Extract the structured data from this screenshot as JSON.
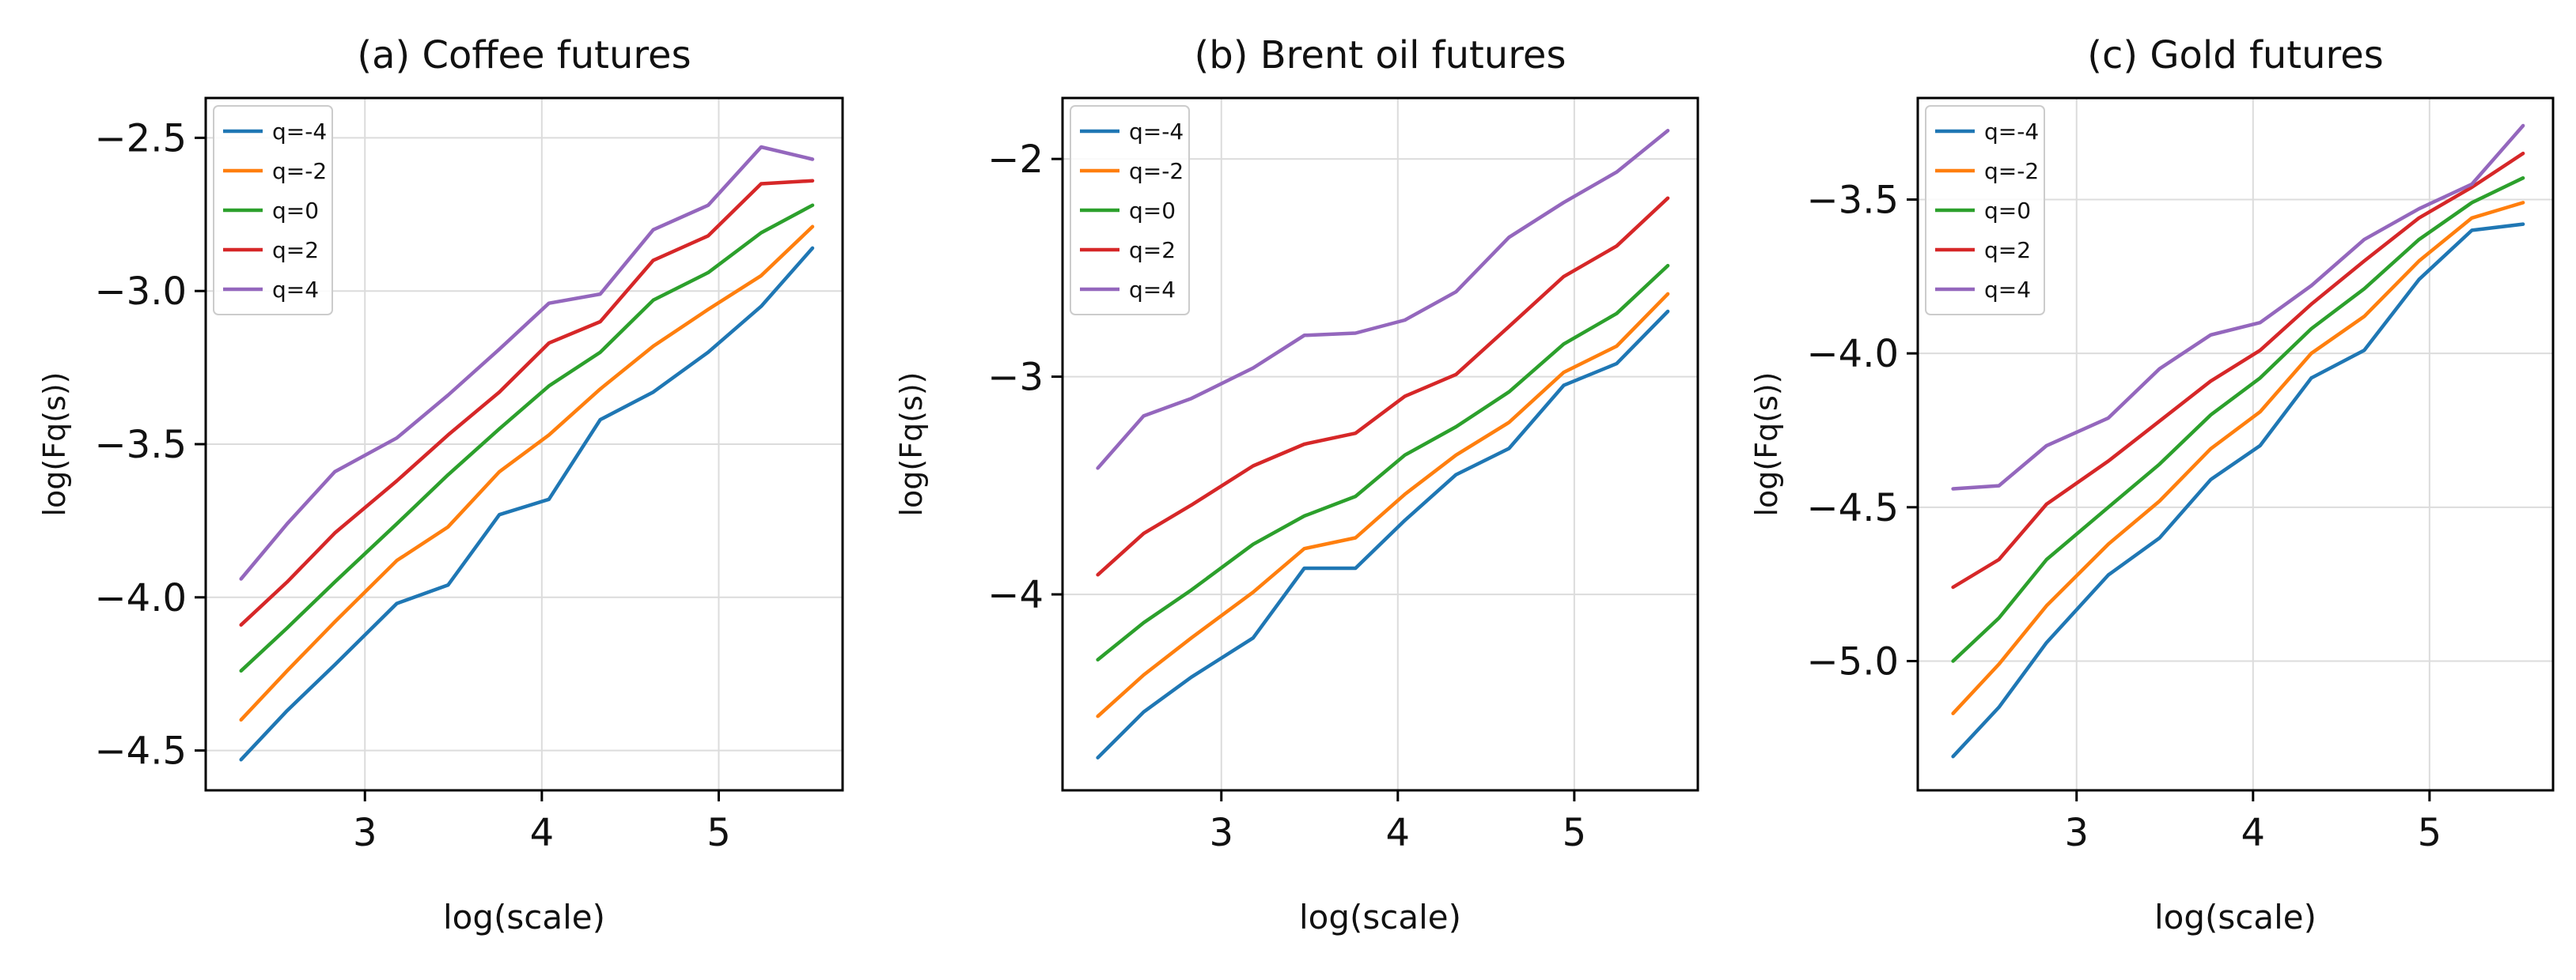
{
  "chart_data": [
    {
      "type": "line",
      "title": "(a) Coffee futures",
      "xlabel": "log(scale)",
      "ylabel": "log(Fq(s))",
      "xlim": [
        2.1,
        5.7
      ],
      "ylim": [
        -4.63,
        -2.37
      ],
      "xticks": [
        3,
        4,
        5
      ],
      "xtick_labels": [
        "3",
        "4",
        "5"
      ],
      "yticks": [
        -4.5,
        -4.0,
        -3.5,
        -3.0,
        -2.5
      ],
      "ytick_labels": [
        "−4.5",
        "−4.0",
        "−3.5",
        "−3.0",
        "−2.5"
      ],
      "grid": true,
      "legend_position": "top-left",
      "x": [
        2.3,
        2.56,
        2.83,
        3.18,
        3.47,
        3.76,
        4.04,
        4.33,
        4.63,
        4.94,
        5.24,
        5.53
      ],
      "series": [
        {
          "name": "q=-4",
          "color": "#1f77b4",
          "values": [
            -4.53,
            -4.37,
            -4.22,
            -4.02,
            -3.96,
            -3.73,
            -3.68,
            -3.42,
            -3.33,
            -3.2,
            -3.05,
            -2.86
          ]
        },
        {
          "name": "q=-2",
          "color": "#ff7f0e",
          "values": [
            -4.4,
            -4.24,
            -4.08,
            -3.88,
            -3.77,
            -3.59,
            -3.47,
            -3.32,
            -3.18,
            -3.06,
            -2.95,
            -2.79
          ]
        },
        {
          "name": "q=0",
          "color": "#2ca02c",
          "values": [
            -4.24,
            -4.1,
            -3.95,
            -3.76,
            -3.6,
            -3.45,
            -3.31,
            -3.2,
            -3.03,
            -2.94,
            -2.81,
            -2.72
          ]
        },
        {
          "name": "q=2",
          "color": "#d62728",
          "values": [
            -4.09,
            -3.95,
            -3.79,
            -3.62,
            -3.47,
            -3.33,
            -3.17,
            -3.1,
            -2.9,
            -2.82,
            -2.65,
            -2.64
          ]
        },
        {
          "name": "q=4",
          "color": "#9467bd",
          "values": [
            -3.94,
            -3.76,
            -3.59,
            -3.48,
            -3.34,
            -3.19,
            -3.04,
            -3.01,
            -2.8,
            -2.72,
            -2.53,
            -2.57
          ]
        }
      ]
    },
    {
      "type": "line",
      "title": "(b) Brent oil futures",
      "xlabel": "log(scale)",
      "ylabel": "log(Fq(s))",
      "xlim": [
        2.1,
        5.7
      ],
      "ylim": [
        -4.9,
        -1.72
      ],
      "xticks": [
        3,
        4,
        5
      ],
      "xtick_labels": [
        "3",
        "4",
        "5"
      ],
      "yticks": [
        -4,
        -3,
        -2
      ],
      "ytick_labels": [
        "−4",
        "−3",
        "−2"
      ],
      "grid": true,
      "legend_position": "top-left",
      "x": [
        2.3,
        2.56,
        2.83,
        3.18,
        3.47,
        3.76,
        4.04,
        4.33,
        4.63,
        4.94,
        5.24,
        5.53
      ],
      "series": [
        {
          "name": "q=-4",
          "color": "#1f77b4",
          "values": [
            -4.75,
            -4.54,
            -4.38,
            -4.2,
            -3.88,
            -3.88,
            -3.66,
            -3.45,
            -3.33,
            -3.04,
            -2.94,
            -2.7
          ]
        },
        {
          "name": "q=-2",
          "color": "#ff7f0e",
          "values": [
            -4.56,
            -4.37,
            -4.2,
            -3.99,
            -3.79,
            -3.74,
            -3.54,
            -3.36,
            -3.21,
            -2.98,
            -2.86,
            -2.62
          ]
        },
        {
          "name": "q=0",
          "color": "#2ca02c",
          "values": [
            -4.3,
            -4.13,
            -3.98,
            -3.77,
            -3.64,
            -3.55,
            -3.36,
            -3.23,
            -3.07,
            -2.85,
            -2.71,
            -2.49
          ]
        },
        {
          "name": "q=2",
          "color": "#d62728",
          "values": [
            -3.91,
            -3.72,
            -3.59,
            -3.41,
            -3.31,
            -3.26,
            -3.09,
            -2.99,
            -2.77,
            -2.54,
            -2.4,
            -2.18
          ]
        },
        {
          "name": "q=4",
          "color": "#9467bd",
          "values": [
            -3.42,
            -3.18,
            -3.1,
            -2.96,
            -2.81,
            -2.8,
            -2.74,
            -2.61,
            -2.36,
            -2.2,
            -2.06,
            -1.87
          ]
        }
      ]
    },
    {
      "type": "line",
      "title": "(c) Gold futures",
      "xlabel": "log(scale)",
      "ylabel": "log(Fq(s))",
      "xlim": [
        2.1,
        5.7
      ],
      "ylim": [
        -5.42,
        -3.17
      ],
      "xticks": [
        3,
        4,
        5
      ],
      "xtick_labels": [
        "3",
        "4",
        "5"
      ],
      "yticks": [
        -5.0,
        -4.5,
        -4.0,
        -3.5
      ],
      "ytick_labels": [
        "−5.0",
        "−4.5",
        "−4.0",
        "−3.5"
      ],
      "grid": true,
      "legend_position": "top-left",
      "x": [
        2.3,
        2.56,
        2.83,
        3.18,
        3.47,
        3.76,
        4.04,
        4.33,
        4.63,
        4.94,
        5.24,
        5.53
      ],
      "series": [
        {
          "name": "q=-4",
          "color": "#1f77b4",
          "values": [
            -5.31,
            -5.15,
            -4.94,
            -4.72,
            -4.6,
            -4.41,
            -4.3,
            -4.08,
            -3.99,
            -3.76,
            -3.6,
            -3.58
          ]
        },
        {
          "name": "q=-2",
          "color": "#ff7f0e",
          "values": [
            -5.17,
            -5.01,
            -4.82,
            -4.62,
            -4.48,
            -4.31,
            -4.19,
            -4.0,
            -3.88,
            -3.7,
            -3.56,
            -3.51
          ]
        },
        {
          "name": "q=0",
          "color": "#2ca02c",
          "values": [
            -5.0,
            -4.86,
            -4.67,
            -4.5,
            -4.36,
            -4.2,
            -4.08,
            -3.92,
            -3.79,
            -3.63,
            -3.51,
            -3.43
          ]
        },
        {
          "name": "q=2",
          "color": "#d62728",
          "values": [
            -4.76,
            -4.67,
            -4.49,
            -4.35,
            -4.22,
            -4.09,
            -3.99,
            -3.84,
            -3.7,
            -3.56,
            -3.46,
            -3.35
          ]
        },
        {
          "name": "q=4",
          "color": "#9467bd",
          "values": [
            -4.44,
            -4.43,
            -4.3,
            -4.21,
            -4.05,
            -3.94,
            -3.9,
            -3.78,
            -3.63,
            -3.53,
            -3.45,
            -3.26
          ]
        }
      ]
    }
  ]
}
